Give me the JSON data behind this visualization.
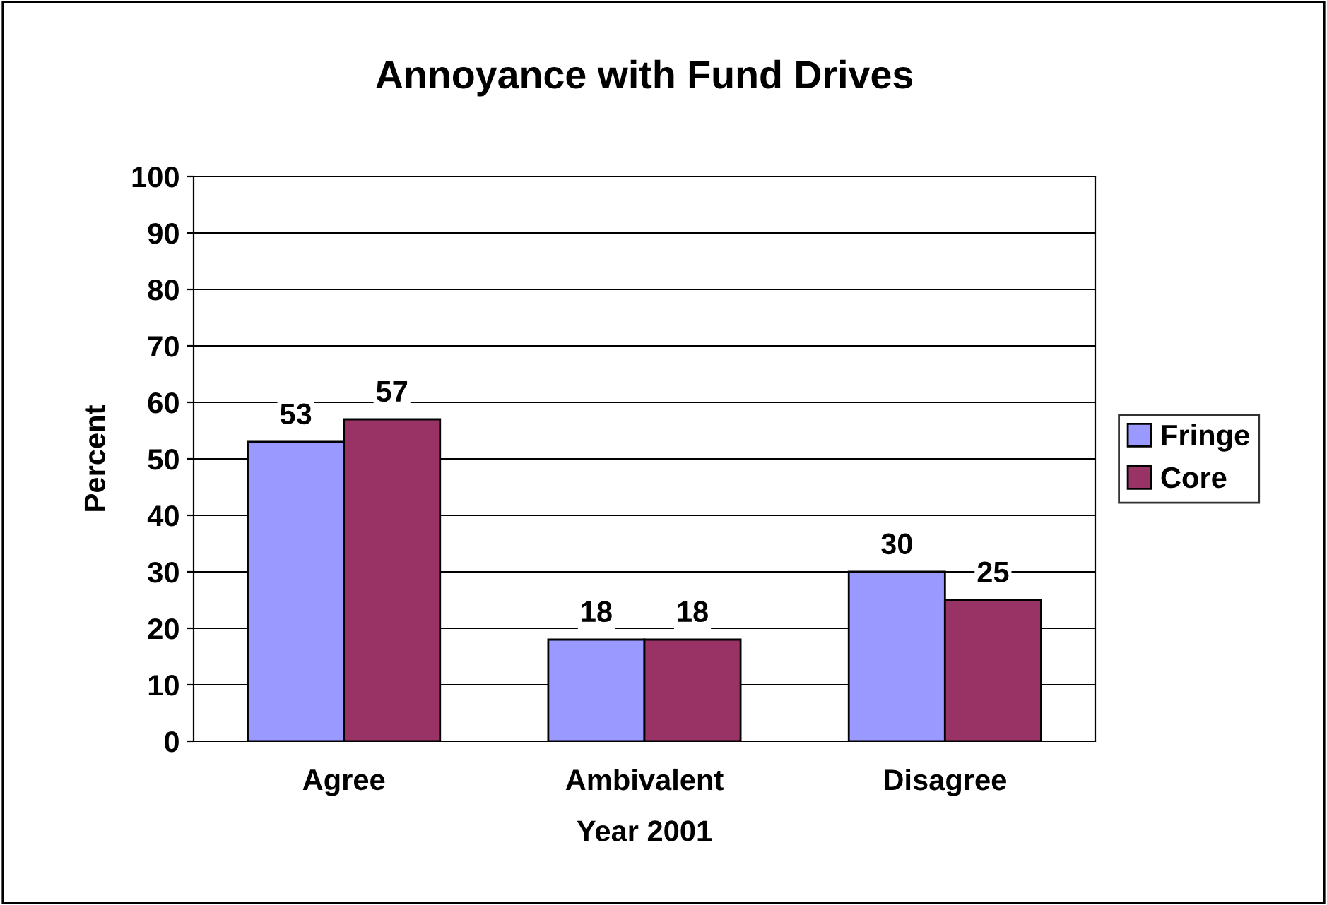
{
  "chart_data": {
    "type": "bar",
    "title": "Annoyance with Fund Drives",
    "xlabel": "Year 2001",
    "ylabel": "Percent",
    "categories": [
      "Agree",
      "Ambivalent",
      "Disagree"
    ],
    "series": [
      {
        "name": "Fringe",
        "color": "#9999ff",
        "values": [
          53,
          18,
          30
        ]
      },
      {
        "name": "Core",
        "color": "#993366",
        "values": [
          57,
          18,
          25
        ]
      }
    ],
    "ylim": [
      0,
      100
    ],
    "yticks": [
      0,
      10,
      20,
      30,
      40,
      50,
      60,
      70,
      80,
      90,
      100
    ],
    "grid": "y",
    "legend": "right",
    "data_labels": true
  }
}
